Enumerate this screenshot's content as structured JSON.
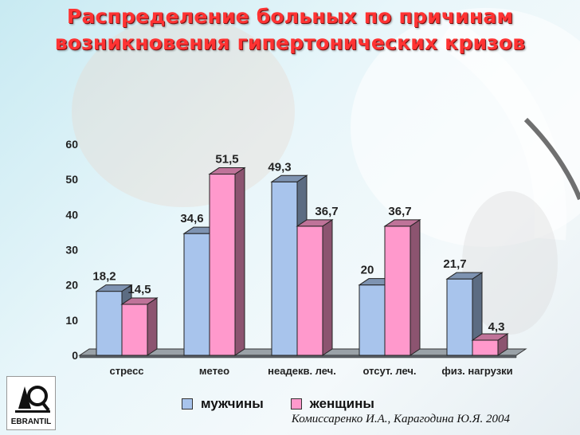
{
  "title_line1": "Распределение больных по причинам",
  "title_line2": "возникновения гипертонических кризов",
  "source": "Комиссаренко И.А., Карагодина Ю.Я. 2004",
  "logo_text": "EBRANTIL",
  "colors": {
    "men": "#a8c4ec",
    "women": "#ff99cc",
    "title": "#ff3333"
  },
  "chart_data": {
    "type": "bar",
    "categories": [
      "стресс",
      "метео",
      "неадекв. леч.",
      "отсут. леч.",
      "физ. нагрузки"
    ],
    "series": [
      {
        "name": "мужчины",
        "values": [
          18.2,
          34.6,
          49.3,
          20,
          21.7
        ],
        "labels": [
          "18,2",
          "34,6",
          "49,3",
          "20",
          "21,7"
        ]
      },
      {
        "name": "женщины",
        "values": [
          14.5,
          51.5,
          36.7,
          36.7,
          4.3
        ],
        "labels": [
          "14,5",
          "51,5",
          "36,7",
          "36,7",
          "4,3"
        ]
      }
    ],
    "ylim": [
      0,
      60
    ],
    "yticks": [
      0,
      10,
      20,
      30,
      40,
      50,
      60
    ],
    "legend_position": "bottom",
    "grid": false
  }
}
